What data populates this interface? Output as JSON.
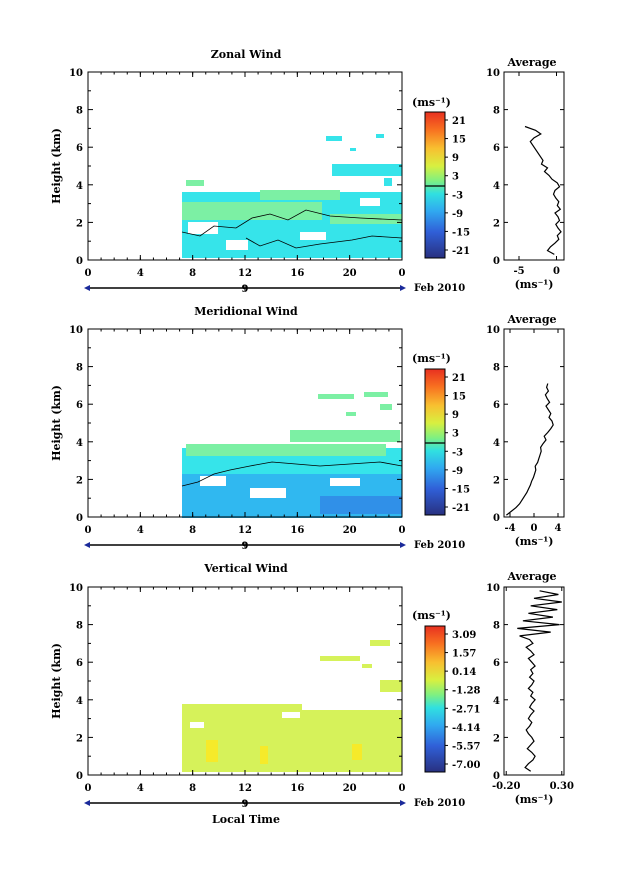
{
  "figure": {
    "date_label": "Feb 2010",
    "xlabel_bottom": "Local Time",
    "day_label": "9"
  },
  "chart_data": [
    {
      "type": "heatmap",
      "title": "Zonal Wind",
      "xlabel": "",
      "ylabel": "Height (km)",
      "xticks": [
        "0",
        "4",
        "8",
        "12",
        "16",
        "20",
        "0"
      ],
      "xlim": [
        0,
        24
      ],
      "yticks": [
        "0",
        "2",
        "4",
        "6",
        "8",
        "10"
      ],
      "ylim": [
        0,
        10
      ],
      "colorbar": {
        "unit": "(ms⁻¹)",
        "labels": [
          "21",
          "15",
          "9",
          "3",
          "-3",
          "-9",
          "-15",
          "-21"
        ]
      },
      "average": {
        "title": "Average",
        "xlabel": "(ms⁻¹)",
        "xticks": [
          "-5",
          "0"
        ],
        "xlim": [
          -7,
          1
        ],
        "heights": [
          0.3,
          0.5,
          0.7,
          0.9,
          1.1,
          1.3,
          1.5,
          1.7,
          1.9,
          2.1,
          2.3,
          2.5,
          2.7,
          2.9,
          3.1,
          3.3,
          3.5,
          3.7,
          3.9,
          4.1,
          4.3,
          4.5,
          4.7,
          4.9,
          5.1,
          5.3,
          6.3,
          6.5,
          6.7,
          6.9,
          7.1
        ],
        "values": [
          -0.3,
          -1.2,
          -0.8,
          -0.2,
          0.3,
          0.1,
          0.6,
          0.2,
          -0.1,
          0.4,
          0.2,
          -0.2,
          0.5,
          0.1,
          0.3,
          -0.1,
          -0.4,
          -0.2,
          0.4,
          0.1,
          -0.6,
          -1.0,
          -1.6,
          -1.2,
          -2.0,
          -1.8,
          -3.5,
          -3.0,
          -2.1,
          -2.8,
          -4.2
        ]
      }
    },
    {
      "type": "heatmap",
      "title": "Meridional Wind",
      "xlabel": "",
      "ylabel": "Height (km)",
      "xticks": [
        "0",
        "4",
        "8",
        "12",
        "16",
        "20",
        "0"
      ],
      "xlim": [
        0,
        24
      ],
      "yticks": [
        "0",
        "2",
        "4",
        "6",
        "8",
        "10"
      ],
      "ylim": [
        0,
        10
      ],
      "colorbar": {
        "unit": "(ms⁻¹)",
        "labels": [
          "21",
          "15",
          "9",
          "3",
          "-3",
          "-9",
          "-15",
          "-21"
        ]
      },
      "average": {
        "title": "Average",
        "xlabel": "(ms⁻¹)",
        "xticks": [
          "-4",
          "0",
          "4"
        ],
        "xlim": [
          -5,
          5
        ],
        "heights": [
          0.1,
          0.3,
          0.5,
          0.7,
          0.9,
          1.1,
          1.3,
          1.5,
          1.7,
          1.9,
          2.1,
          2.3,
          2.5,
          2.7,
          2.9,
          3.1,
          3.3,
          3.5,
          3.7,
          3.9,
          4.1,
          4.3,
          4.5,
          4.7,
          4.9,
          5.1,
          5.3,
          5.5,
          5.7,
          5.9,
          6.1,
          6.3,
          6.5,
          6.7,
          6.9,
          7.1
        ],
        "values": [
          -4.6,
          -3.8,
          -3.0,
          -2.4,
          -2.0,
          -1.6,
          -1.2,
          -0.9,
          -0.6,
          -0.4,
          -0.1,
          0.1,
          0.3,
          0.2,
          0.6,
          0.8,
          1.0,
          1.2,
          1.1,
          1.5,
          2.0,
          1.7,
          2.3,
          2.8,
          3.2,
          3.0,
          2.5,
          2.8,
          2.4,
          2.0,
          2.6,
          2.2,
          1.9,
          2.4,
          2.1,
          2.3
        ]
      }
    },
    {
      "type": "heatmap",
      "title": "Vertical Wind",
      "xlabel": "Local Time",
      "ylabel": "Height (km)",
      "xticks": [
        "0",
        "4",
        "8",
        "12",
        "16",
        "20",
        "0"
      ],
      "xlim": [
        0,
        24
      ],
      "yticks": [
        "0",
        "2",
        "4",
        "6",
        "8",
        "10"
      ],
      "ylim": [
        0,
        10
      ],
      "colorbar": {
        "unit": "(ms⁻¹)",
        "labels": [
          "3.09",
          "1.57",
          "0.14",
          "-1.28",
          "-2.71",
          "-4.14",
          "-5.57",
          "-7.00"
        ]
      },
      "average": {
        "title": "Average",
        "xlabel": "(ms⁻¹)",
        "xticks": [
          "-0.20",
          "0.30"
        ],
        "xlim": [
          -0.22,
          0.32
        ],
        "heights": [
          0.2,
          0.4,
          0.6,
          0.8,
          1.0,
          1.2,
          1.4,
          1.6,
          1.8,
          2.0,
          2.2,
          2.4,
          2.6,
          2.8,
          3.0,
          3.2,
          3.4,
          3.6,
          3.8,
          4.0,
          4.2,
          4.4,
          4.6,
          4.8,
          5.0,
          5.2,
          5.4,
          5.6,
          5.8,
          6.0,
          6.2,
          6.4,
          6.6,
          6.8,
          7.0,
          7.2,
          7.4,
          7.6,
          7.8,
          8.0,
          8.2,
          8.4,
          8.6,
          8.8,
          9.0,
          9.2,
          9.4,
          9.6,
          9.8
        ],
        "values": [
          0.02,
          -0.03,
          0.0,
          0.04,
          0.06,
          0.03,
          -0.01,
          0.02,
          0.05,
          0.03,
          0.0,
          -0.02,
          0.01,
          0.03,
          0.0,
          0.02,
          0.05,
          0.01,
          0.03,
          0.06,
          0.02,
          0.04,
          0.0,
          0.03,
          0.05,
          0.01,
          0.04,
          0.02,
          0.06,
          0.03,
          0.0,
          0.05,
          0.02,
          -0.02,
          0.04,
          0.01,
          -0.08,
          0.2,
          -0.1,
          0.28,
          -0.05,
          0.22,
          0.0,
          0.26,
          0.02,
          0.3,
          0.05,
          0.27,
          0.1
        ]
      }
    }
  ]
}
